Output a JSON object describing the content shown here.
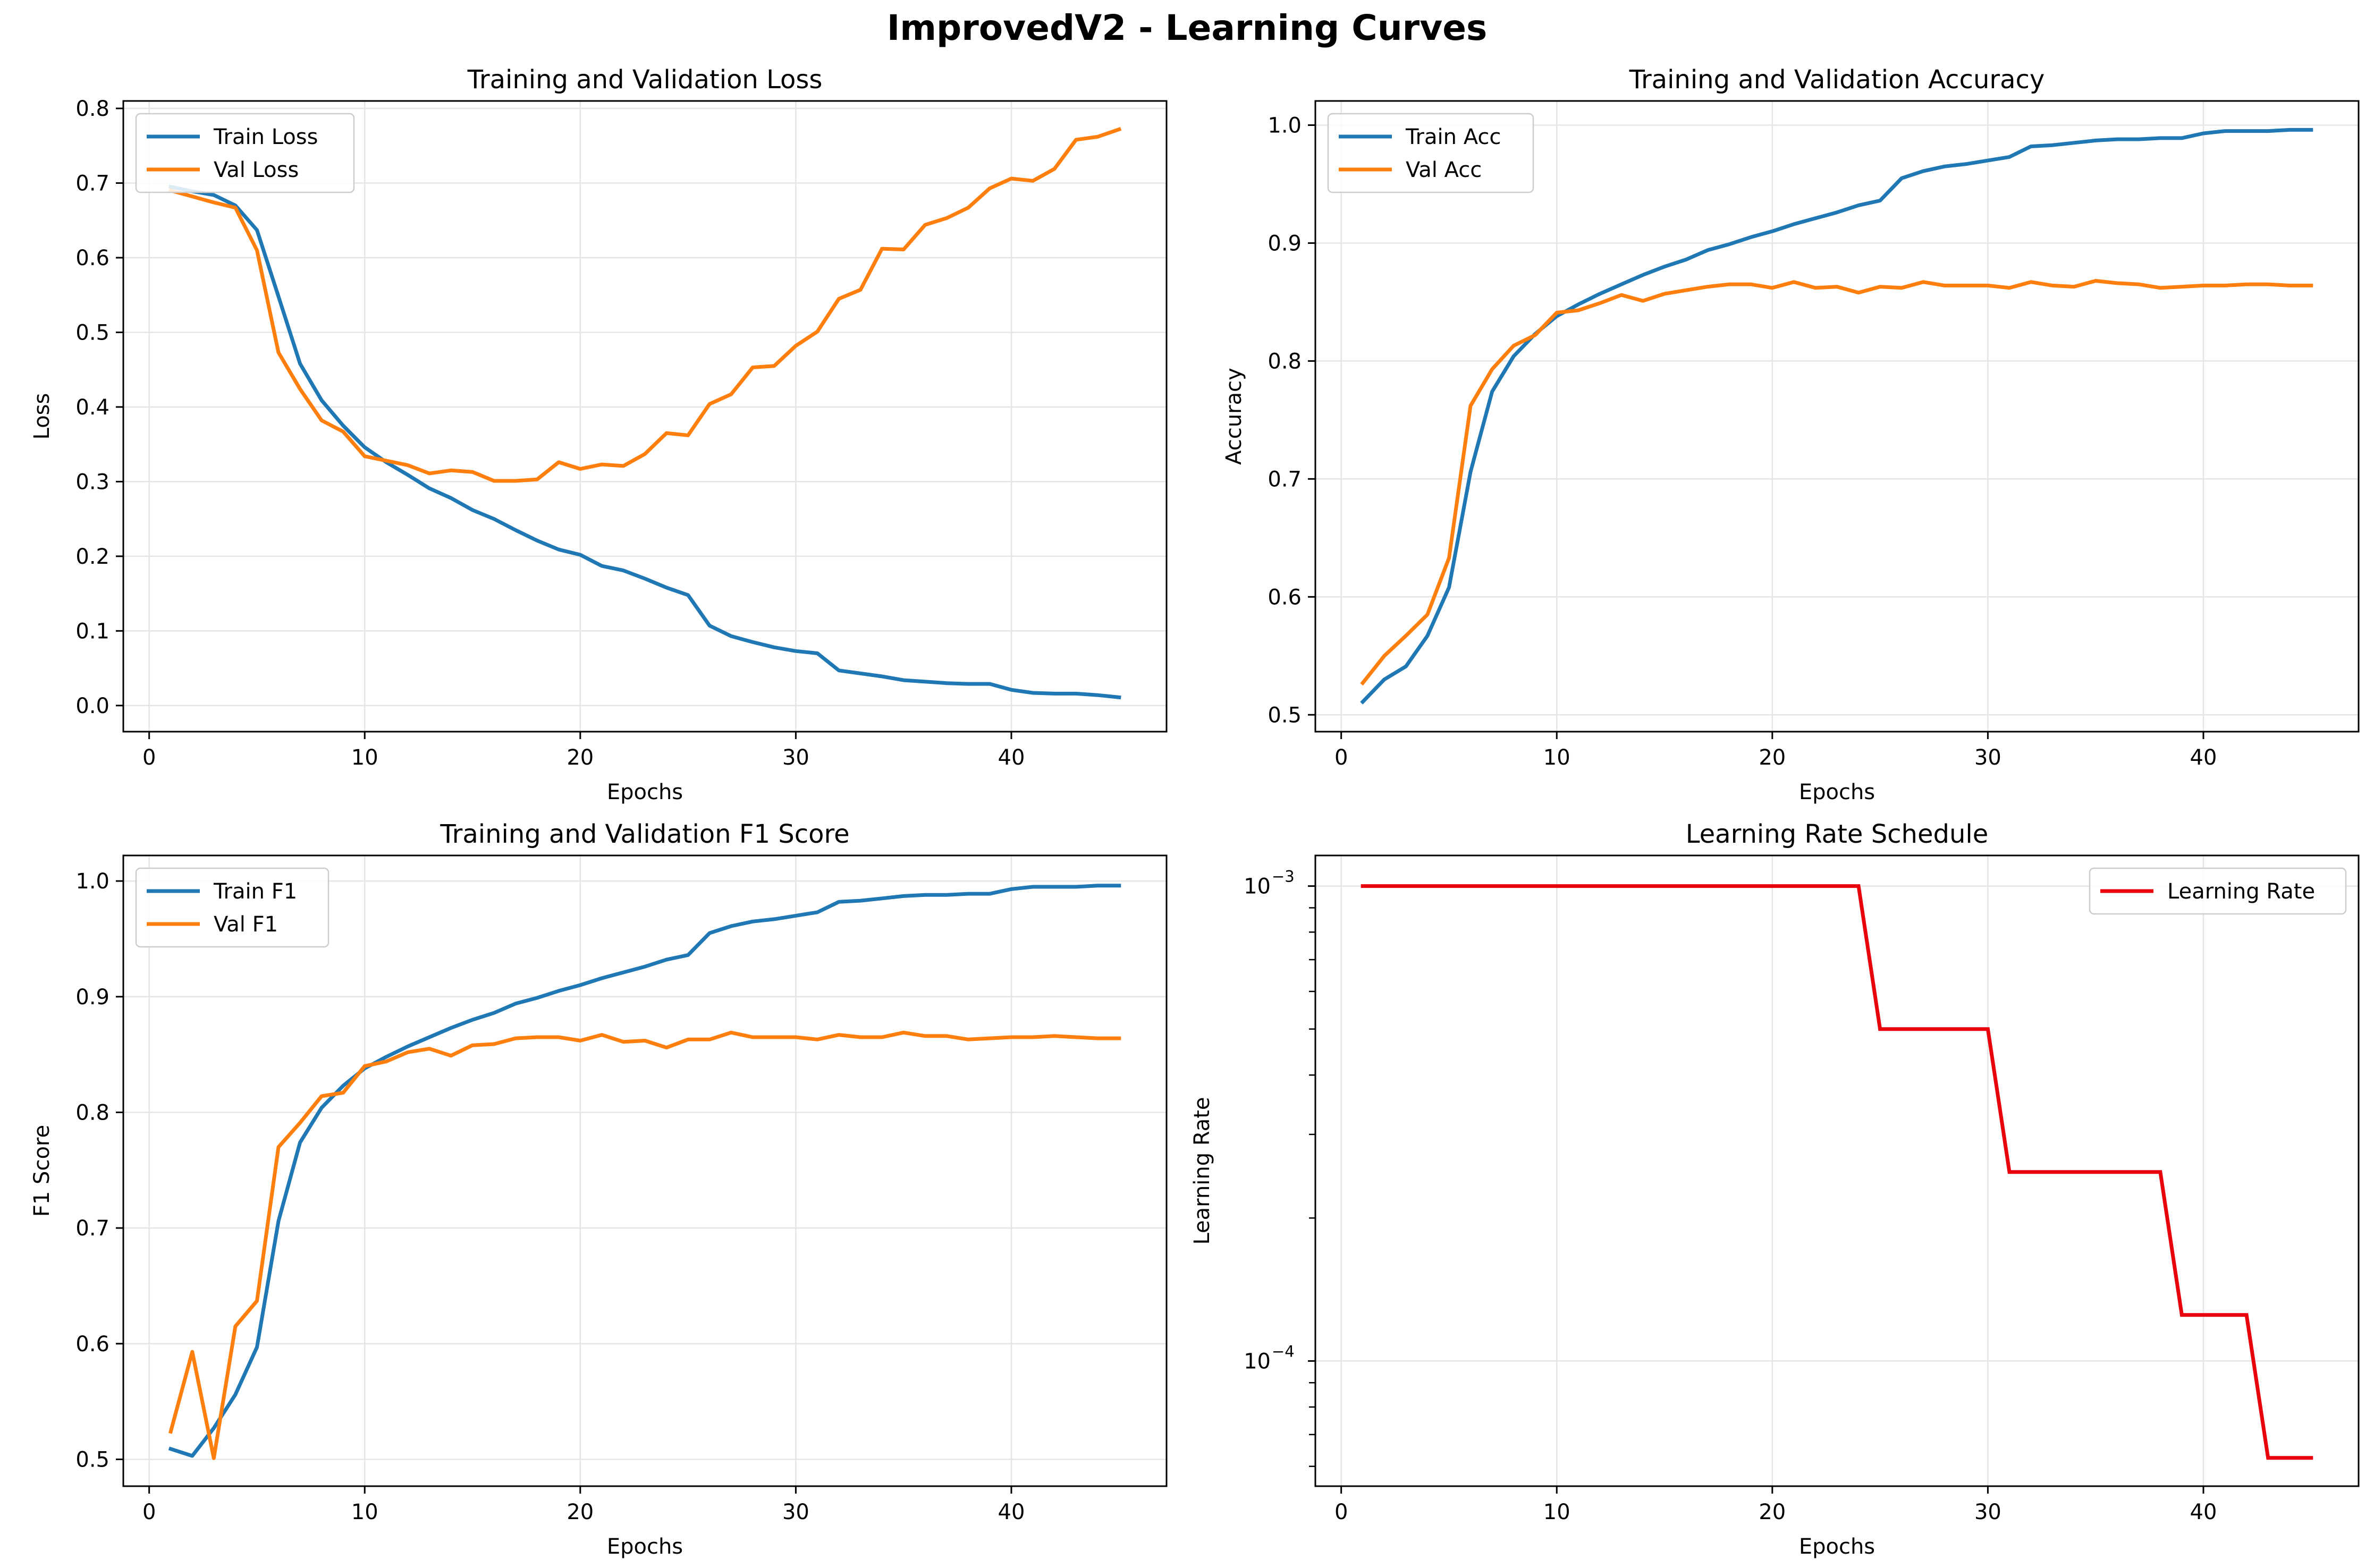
{
  "figure": {
    "title": "ImprovedV2 - Learning Curves"
  },
  "colors": {
    "train": "#1f77b4",
    "val": "#ff7f0e",
    "lr": "#e8000b",
    "grid": "#e5e5e5"
  },
  "chart_data": [
    {
      "type": "line",
      "title": "Training and Validation Loss",
      "xlabel": "Epochs",
      "ylabel": "Loss",
      "xlim": [
        -1.2,
        47.2
      ],
      "ylim": [
        -0.035,
        0.81
      ],
      "xticks": [
        0,
        10,
        20,
        30,
        40
      ],
      "xtick_labels": [
        "0",
        "10",
        "20",
        "30",
        "40"
      ],
      "yticks": [
        0.0,
        0.1,
        0.2,
        0.3,
        0.4,
        0.5,
        0.6,
        0.7,
        0.8
      ],
      "ytick_labels": [
        "0.0",
        "0.1",
        "0.2",
        "0.3",
        "0.4",
        "0.5",
        "0.6",
        "0.7",
        "0.8"
      ],
      "grid": true,
      "legend": "upper left",
      "x": [
        1,
        2,
        3,
        4,
        5,
        6,
        7,
        8,
        9,
        10,
        11,
        12,
        13,
        14,
        15,
        16,
        17,
        18,
        19,
        20,
        21,
        22,
        23,
        24,
        25,
        26,
        27,
        28,
        29,
        30,
        31,
        32,
        33,
        34,
        35,
        36,
        37,
        38,
        39,
        40,
        41,
        42,
        43,
        44,
        45
      ],
      "series": [
        {
          "name": "Train Loss",
          "color": "#1f77b4",
          "values": [
            0.695,
            0.689,
            0.684,
            0.67,
            0.637,
            0.548,
            0.458,
            0.409,
            0.375,
            0.346,
            0.326,
            0.309,
            0.291,
            0.278,
            0.262,
            0.25,
            0.235,
            0.221,
            0.209,
            0.202,
            0.187,
            0.181,
            0.17,
            0.158,
            0.148,
            0.107,
            0.093,
            0.085,
            0.078,
            0.073,
            0.07,
            0.047,
            0.043,
            0.039,
            0.034,
            0.032,
            0.03,
            0.029,
            0.029,
            0.021,
            0.017,
            0.016,
            0.016,
            0.014,
            0.011
          ]
        },
        {
          "name": "Val Loss",
          "color": "#ff7f0e",
          "values": [
            0.69,
            0.682,
            0.674,
            0.667,
            0.61,
            0.473,
            0.424,
            0.382,
            0.367,
            0.334,
            0.328,
            0.322,
            0.311,
            0.315,
            0.313,
            0.301,
            0.301,
            0.303,
            0.326,
            0.317,
            0.323,
            0.321,
            0.337,
            0.365,
            0.362,
            0.404,
            0.417,
            0.453,
            0.455,
            0.482,
            0.501,
            0.545,
            0.557,
            0.612,
            0.611,
            0.644,
            0.653,
            0.667,
            0.693,
            0.706,
            0.703,
            0.719,
            0.758,
            0.762,
            0.772
          ]
        }
      ]
    },
    {
      "type": "line",
      "title": "Training and Validation Accuracy",
      "xlabel": "Epochs",
      "ylabel": "Accuracy",
      "xlim": [
        -1.2,
        47.2
      ],
      "ylim": [
        0.4857,
        1.0205
      ],
      "xticks": [
        0,
        10,
        20,
        30,
        40
      ],
      "xtick_labels": [
        "0",
        "10",
        "20",
        "30",
        "40"
      ],
      "yticks": [
        0.5,
        0.6,
        0.7,
        0.8,
        0.9,
        1.0
      ],
      "ytick_labels": [
        "0.5",
        "0.6",
        "0.7",
        "0.8",
        "0.9",
        "1.0"
      ],
      "grid": true,
      "legend": "upper left",
      "x": [
        1,
        2,
        3,
        4,
        5,
        6,
        7,
        8,
        9,
        10,
        11,
        12,
        13,
        14,
        15,
        16,
        17,
        18,
        19,
        20,
        21,
        22,
        23,
        24,
        25,
        26,
        27,
        28,
        29,
        30,
        31,
        32,
        33,
        34,
        35,
        36,
        37,
        38,
        39,
        40,
        41,
        42,
        43,
        44,
        45
      ],
      "series": [
        {
          "name": "Train Acc",
          "color": "#1f77b4",
          "values": [
            0.511,
            0.53,
            0.541,
            0.567,
            0.608,
            0.706,
            0.774,
            0.804,
            0.823,
            0.838,
            0.848,
            0.857,
            0.865,
            0.873,
            0.88,
            0.886,
            0.894,
            0.899,
            0.905,
            0.91,
            0.916,
            0.921,
            0.926,
            0.932,
            0.936,
            0.955,
            0.961,
            0.965,
            0.967,
            0.97,
            0.973,
            0.982,
            0.983,
            0.985,
            0.987,
            0.988,
            0.988,
            0.989,
            0.989,
            0.993,
            0.995,
            0.995,
            0.995,
            0.996,
            0.996
          ]
        },
        {
          "name": "Val Acc",
          "color": "#ff7f0e",
          "values": [
            0.527,
            0.55,
            0.567,
            0.585,
            0.633,
            0.762,
            0.793,
            0.813,
            0.822,
            0.841,
            0.843,
            0.849,
            0.856,
            0.851,
            0.857,
            0.86,
            0.863,
            0.865,
            0.865,
            0.862,
            0.867,
            0.862,
            0.863,
            0.858,
            0.863,
            0.862,
            0.867,
            0.864,
            0.864,
            0.864,
            0.862,
            0.867,
            0.864,
            0.863,
            0.868,
            0.866,
            0.865,
            0.862,
            0.863,
            0.864,
            0.864,
            0.865,
            0.865,
            0.864,
            0.864
          ]
        }
      ]
    },
    {
      "type": "line",
      "title": "Training and Validation F1 Score",
      "xlabel": "Epochs",
      "ylabel": "F1 Score",
      "xlim": [
        -1.2,
        47.2
      ],
      "ylim": [
        0.4768,
        1.0221
      ],
      "xticks": [
        0,
        10,
        20,
        30,
        40
      ],
      "xtick_labels": [
        "0",
        "10",
        "20",
        "30",
        "40"
      ],
      "yticks": [
        0.5,
        0.6,
        0.7,
        0.8,
        0.9,
        1.0
      ],
      "ytick_labels": [
        "0.5",
        "0.6",
        "0.7",
        "0.8",
        "0.9",
        "1.0"
      ],
      "grid": true,
      "legend": "upper left",
      "x": [
        1,
        2,
        3,
        4,
        5,
        6,
        7,
        8,
        9,
        10,
        11,
        12,
        13,
        14,
        15,
        16,
        17,
        18,
        19,
        20,
        21,
        22,
        23,
        24,
        25,
        26,
        27,
        28,
        29,
        30,
        31,
        32,
        33,
        34,
        35,
        36,
        37,
        38,
        39,
        40,
        41,
        42,
        43,
        44,
        45
      ],
      "series": [
        {
          "name": "Train F1",
          "color": "#1f77b4",
          "values": [
            0.509,
            0.503,
            0.527,
            0.556,
            0.597,
            0.706,
            0.774,
            0.804,
            0.823,
            0.838,
            0.848,
            0.857,
            0.865,
            0.873,
            0.88,
            0.886,
            0.894,
            0.899,
            0.905,
            0.91,
            0.916,
            0.921,
            0.926,
            0.932,
            0.936,
            0.955,
            0.961,
            0.965,
            0.967,
            0.97,
            0.973,
            0.982,
            0.983,
            0.985,
            0.987,
            0.988,
            0.988,
            0.989,
            0.989,
            0.993,
            0.995,
            0.995,
            0.995,
            0.996,
            0.996
          ]
        },
        {
          "name": "Val F1",
          "color": "#ff7f0e",
          "values": [
            0.524,
            0.593,
            0.501,
            0.615,
            0.637,
            0.77,
            0.791,
            0.814,
            0.817,
            0.84,
            0.844,
            0.852,
            0.855,
            0.849,
            0.858,
            0.859,
            0.864,
            0.865,
            0.865,
            0.862,
            0.867,
            0.861,
            0.862,
            0.856,
            0.863,
            0.863,
            0.869,
            0.865,
            0.865,
            0.865,
            0.863,
            0.867,
            0.865,
            0.865,
            0.869,
            0.866,
            0.866,
            0.863,
            0.864,
            0.865,
            0.865,
            0.866,
            0.865,
            0.864,
            0.864
          ]
        }
      ]
    },
    {
      "type": "line",
      "title": "Learning Rate Schedule",
      "xlabel": "Epochs",
      "ylabel": "Learning Rate",
      "yscale": "log",
      "xlim": [
        -1.2,
        47.2
      ],
      "ylim": [
        5.45e-05,
        0.00116
      ],
      "xticks": [
        0,
        10,
        20,
        30,
        40
      ],
      "xtick_labels": [
        "0",
        "10",
        "20",
        "30",
        "40"
      ],
      "yticks": [
        0.001,
        0.0001
      ],
      "ytick_labels": [
        {
          "base": "10",
          "exp": "−3"
        },
        {
          "base": "10",
          "exp": "−4"
        }
      ],
      "grid": true,
      "legend": "upper right",
      "x": [
        1,
        2,
        3,
        4,
        5,
        6,
        7,
        8,
        9,
        10,
        11,
        12,
        13,
        14,
        15,
        16,
        17,
        18,
        19,
        20,
        21,
        22,
        23,
        24,
        25,
        26,
        27,
        28,
        29,
        30,
        31,
        32,
        33,
        34,
        35,
        36,
        37,
        38,
        39,
        40,
        41,
        42,
        43,
        44,
        45
      ],
      "series": [
        {
          "name": "Learning Rate",
          "color": "#e8000b",
          "values": [
            0.001,
            0.001,
            0.001,
            0.001,
            0.001,
            0.001,
            0.001,
            0.001,
            0.001,
            0.001,
            0.001,
            0.001,
            0.001,
            0.001,
            0.001,
            0.001,
            0.001,
            0.001,
            0.001,
            0.001,
            0.001,
            0.001,
            0.001,
            0.001,
            0.0005,
            0.0005,
            0.0005,
            0.0005,
            0.0005,
            0.0005,
            0.00025,
            0.00025,
            0.00025,
            0.00025,
            0.00025,
            0.00025,
            0.00025,
            0.00025,
            0.000125,
            0.000125,
            0.000125,
            0.000125,
            6.25e-05,
            6.25e-05,
            6.25e-05
          ]
        }
      ]
    }
  ]
}
